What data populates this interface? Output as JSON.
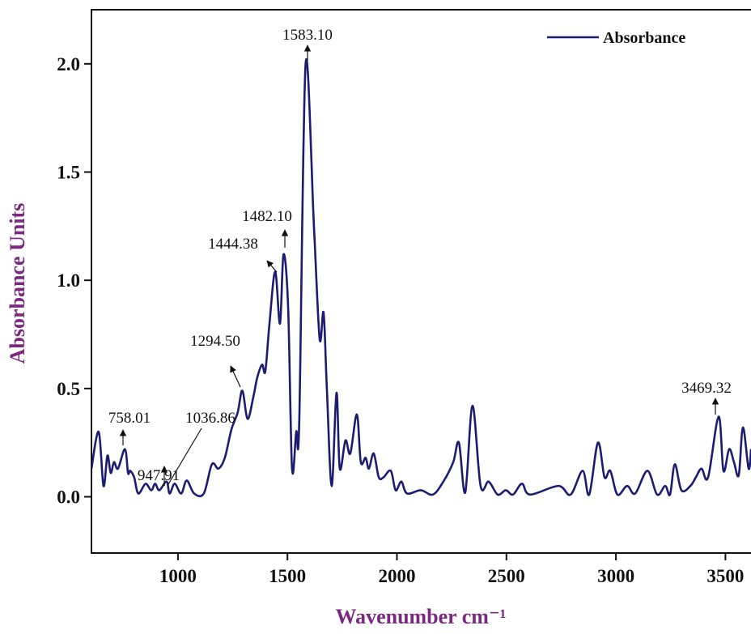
{
  "chart_data": {
    "type": "line",
    "xlabel": "Wavenumber cm⁻¹",
    "ylabel": "Absorbance Units",
    "xlim": [
      605,
      3617
    ],
    "ylim": [
      -0.26,
      2.25
    ],
    "xticks": [
      1000,
      1500,
      2000,
      2500,
      3000,
      3500
    ],
    "yticks": [
      {
        "value": 0,
        "label": "0.0"
      },
      0.5,
      {
        "value": 1,
        "label": "1.0"
      },
      1.5,
      {
        "value": 2,
        "label": "2.0"
      }
    ],
    "legend": "upper right",
    "x": [
      605,
      638,
      660,
      678,
      693,
      708,
      726,
      758,
      772,
      782,
      800,
      819,
      852,
      878,
      896,
      915,
      948,
      962,
      985,
      1015,
      1040,
      1074,
      1118,
      1155,
      1185,
      1214,
      1244,
      1273,
      1294,
      1318,
      1344,
      1362,
      1384,
      1399,
      1418,
      1444,
      1466,
      1482,
      1503,
      1521,
      1540,
      1554,
      1583,
      1621,
      1647,
      1665,
      1680,
      1702,
      1724,
      1739,
      1765,
      1787,
      1817,
      1835,
      1857,
      1872,
      1894,
      1917,
      1939,
      1972,
      1994,
      2020,
      2046,
      2109,
      2164,
      2212,
      2257,
      2283,
      2312,
      2345,
      2382,
      2419,
      2460,
      2497,
      2530,
      2571,
      2608,
      2737,
      2793,
      2848,
      2878,
      2918,
      2948,
      2974,
      3007,
      3051,
      3088,
      3144,
      3188,
      3225,
      3247,
      3269,
      3299,
      3340,
      3365,
      3391,
      3421,
      3469,
      3491,
      3517,
      3539,
      3561,
      3580,
      3606,
      3617
    ],
    "series": [
      {
        "name": "Absorbance",
        "color": "#1c1c72",
        "values": [
          0.13,
          0.3,
          0.05,
          0.19,
          0.11,
          0.16,
          0.13,
          0.22,
          0.11,
          0.12,
          0.09,
          0.015,
          0.06,
          0.03,
          0.06,
          0.03,
          0.07,
          0.015,
          0.06,
          0.015,
          0.075,
          0.015,
          0.015,
          0.15,
          0.13,
          0.18,
          0.31,
          0.39,
          0.49,
          0.36,
          0.46,
          0.55,
          0.61,
          0.58,
          0.8,
          1.04,
          0.8,
          1.12,
          0.88,
          0.13,
          0.3,
          0.35,
          2.0,
          1.25,
          0.73,
          0.85,
          0.5,
          0.05,
          0.48,
          0.13,
          0.26,
          0.2,
          0.38,
          0.16,
          0.18,
          0.13,
          0.2,
          0.09,
          0.09,
          0.12,
          0.03,
          0.07,
          0.015,
          0.03,
          0.01,
          0.07,
          0.16,
          0.25,
          0.02,
          0.42,
          0.05,
          0.07,
          0.01,
          0.03,
          0.01,
          0.06,
          0.01,
          0.05,
          0.01,
          0.12,
          0.01,
          0.25,
          0.09,
          0.12,
          0.01,
          0.05,
          0.015,
          0.12,
          0.01,
          0.05,
          0.01,
          0.15,
          0.03,
          0.05,
          0.09,
          0.13,
          0.09,
          0.37,
          0.12,
          0.22,
          0.16,
          0.1,
          0.32,
          0.13,
          0.22
        ]
      }
    ],
    "annotations": [
      "1583.10",
      "758.01",
      "947.91",
      "1036.86",
      "1294.50",
      "1444.38",
      "1482.10",
      "3469.32"
    ]
  }
}
